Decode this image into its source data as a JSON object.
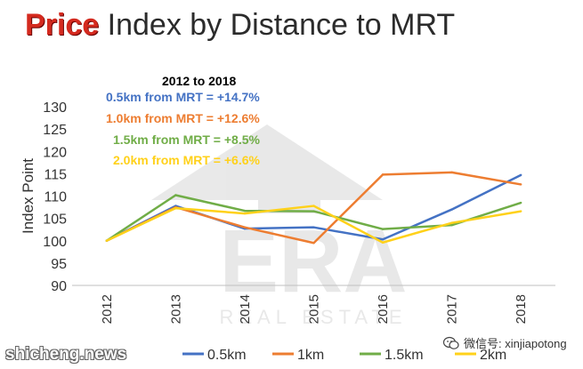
{
  "title": {
    "highlight": "Price",
    "rest": "Index by Distance to MRT"
  },
  "annotations": {
    "heading": "2012 to 2018",
    "lines": [
      "0.5km from MRT = +14.7%",
      "1.0km from MRT =  +12.6%",
      "1.5km from MRT = +8.5%",
      "2.0km from MRT = +6.6%"
    ]
  },
  "chart_data": {
    "type": "line",
    "title": "Price Index by Distance to MRT",
    "xlabel": "",
    "ylabel": "Index Point",
    "x": [
      "2012",
      "2013",
      "2014",
      "2015",
      "2016",
      "2017",
      "2018"
    ],
    "ylim": [
      90,
      130
    ],
    "yticks": [
      90,
      95,
      100,
      105,
      110,
      115,
      120,
      125,
      130
    ],
    "grid": false,
    "legend_position": "bottom",
    "series": [
      {
        "name": "0.5km",
        "color": "#4472c4",
        "values": [
          100,
          107.8,
          102.7,
          103.0,
          100.3,
          107.0,
          114.7
        ]
      },
      {
        "name": "1km",
        "color": "#ed7d31",
        "values": [
          100,
          107.5,
          103.0,
          99.5,
          114.8,
          115.3,
          112.6
        ]
      },
      {
        "name": "1.5km",
        "color": "#70ad47",
        "values": [
          100,
          110.2,
          106.7,
          106.6,
          102.6,
          103.5,
          108.5
        ]
      },
      {
        "name": "2km",
        "color": "#ffd11a",
        "values": [
          100,
          107.3,
          106.1,
          107.8,
          99.6,
          104.0,
          106.6
        ]
      }
    ]
  },
  "watermark": "shicheng.news",
  "wechat": {
    "label": "微信号: xinjiapotong",
    "icon": "wechat-icon"
  },
  "logo_text": {
    "brand": "ERA",
    "sub": "REAL ESTATE"
  }
}
